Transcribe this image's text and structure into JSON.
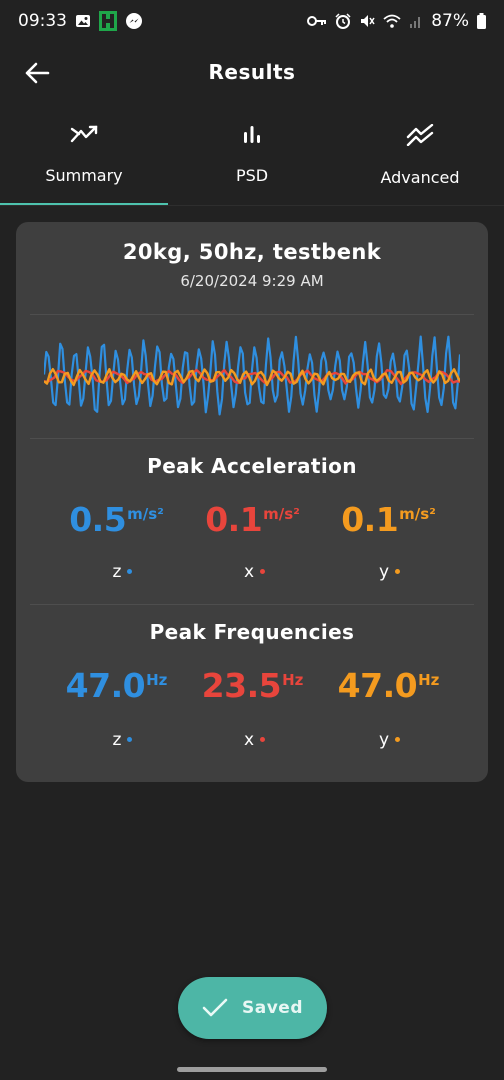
{
  "status_bar": {
    "time": "09:33",
    "battery": "87%",
    "icons": [
      "image-icon",
      "app-icon",
      "messenger-icon",
      "key-icon",
      "alarm-icon",
      "mute-icon",
      "wifi-icon",
      "signal-icon",
      "battery-icon"
    ]
  },
  "header": {
    "title": "Results",
    "back_icon": "arrow-left-icon"
  },
  "tabs": [
    {
      "label": "Summary",
      "icon": "trend-icon",
      "active": true
    },
    {
      "label": "PSD",
      "icon": "bar-chart-icon",
      "active": false
    },
    {
      "label": "Advanced",
      "icon": "double-trend-icon",
      "active": false
    }
  ],
  "card": {
    "title": "20kg, 50hz, testbenk",
    "date": "6/20/2024 9:29 AM"
  },
  "peak_acceleration": {
    "title": "Peak Acceleration",
    "unit": "m/s²",
    "items": [
      {
        "axis": "z",
        "value": "0.5",
        "color": "#2f8fe0"
      },
      {
        "axis": "x",
        "value": "0.1",
        "color": "#e8453c"
      },
      {
        "axis": "y",
        "value": "0.1",
        "color": "#f49b1f"
      }
    ]
  },
  "peak_frequencies": {
    "title": "Peak Frequencies",
    "unit": "Hz",
    "items": [
      {
        "axis": "z",
        "value": "47.0",
        "color": "#2f8fe0"
      },
      {
        "axis": "x",
        "value": "23.5",
        "color": "#e8453c"
      },
      {
        "axis": "y",
        "value": "47.0",
        "color": "#f49b1f"
      }
    ]
  },
  "saved_button": {
    "label": "Saved",
    "icon": "check-icon"
  },
  "colors": {
    "accent": "#4ec3ae",
    "z": "#2f8fe0",
    "x": "#e8453c",
    "y": "#f49b1f"
  }
}
